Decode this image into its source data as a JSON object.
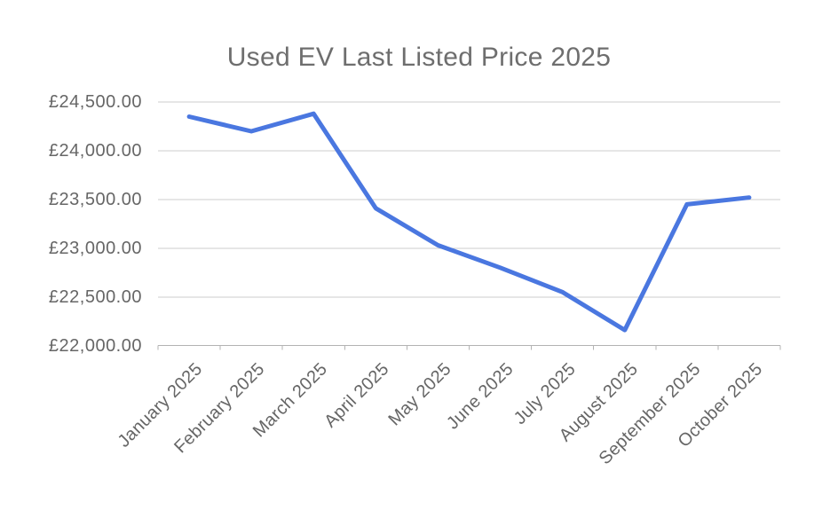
{
  "chart_data": {
    "type": "line",
    "title": "Used EV Last Listed Price 2025",
    "categories": [
      "January 2025",
      "February 2025",
      "March 2025",
      "April 2025",
      "May 2025",
      "June 2025",
      "July 2025",
      "August 2025",
      "September 2025",
      "October 2025"
    ],
    "values": [
      24350,
      24200,
      24380,
      23410,
      23030,
      22800,
      22550,
      22160,
      23450,
      23520
    ],
    "y_axis": {
      "min": 22000,
      "max": 24500,
      "step": 500,
      "ticks": [
        {
          "value": 24500,
          "label": "£24,500.00"
        },
        {
          "value": 24000,
          "label": "£24,000.00"
        },
        {
          "value": 23500,
          "label": "£23,500.00"
        },
        {
          "value": 23000,
          "label": "£23,000.00"
        },
        {
          "value": 22500,
          "label": "£22,500.00"
        },
        {
          "value": 22000,
          "label": "£22,000.00"
        }
      ]
    },
    "x_axis": {
      "label_rotation_deg": -45
    },
    "legend": "none",
    "grid": true,
    "colors": {
      "line": "#4a77e0",
      "title_text": "#6e6e6e",
      "axis_text": "#666666",
      "gridline": "#cccccc",
      "axis_line": "#b3b3b3",
      "background": "#ffffff"
    }
  }
}
